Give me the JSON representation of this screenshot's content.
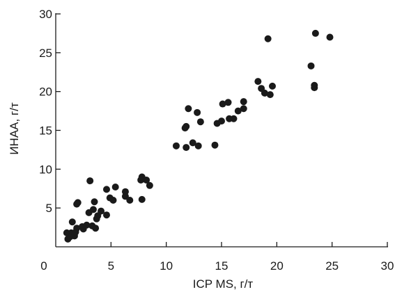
{
  "chart_data": {
    "type": "scatter",
    "xlabel": "ICP MS, г/т",
    "ylabel": "ИНАА, г/т",
    "xlim": [
      0,
      30
    ],
    "ylim": [
      0,
      30
    ],
    "x_ticks": [
      "0",
      "5",
      "10",
      "15",
      "20",
      "25",
      "30"
    ],
    "y_ticks": [
      "5",
      "10",
      "15",
      "20",
      "25",
      "30"
    ],
    "grid": false,
    "legend": "none",
    "point_color": "#1a1a1a",
    "points": [
      {
        "x": 1.0,
        "y": 1.8
      },
      {
        "x": 1.1,
        "y": 1.0
      },
      {
        "x": 1.3,
        "y": 1.3
      },
      {
        "x": 1.4,
        "y": 1.8
      },
      {
        "x": 1.5,
        "y": 1.5
      },
      {
        "x": 1.5,
        "y": 3.2
      },
      {
        "x": 1.7,
        "y": 1.4
      },
      {
        "x": 1.8,
        "y": 1.9
      },
      {
        "x": 1.9,
        "y": 2.4
      },
      {
        "x": 1.9,
        "y": 5.5
      },
      {
        "x": 2.0,
        "y": 5.7
      },
      {
        "x": 2.4,
        "y": 2.6
      },
      {
        "x": 2.5,
        "y": 2.3
      },
      {
        "x": 2.8,
        "y": 2.8
      },
      {
        "x": 3.0,
        "y": 4.4
      },
      {
        "x": 3.1,
        "y": 8.5
      },
      {
        "x": 3.3,
        "y": 2.7
      },
      {
        "x": 3.4,
        "y": 4.8
      },
      {
        "x": 3.5,
        "y": 5.8
      },
      {
        "x": 3.6,
        "y": 2.4
      },
      {
        "x": 3.7,
        "y": 3.6
      },
      {
        "x": 3.8,
        "y": 4.0
      },
      {
        "x": 4.1,
        "y": 4.6
      },
      {
        "x": 4.6,
        "y": 4.1
      },
      {
        "x": 4.6,
        "y": 7.4
      },
      {
        "x": 4.9,
        "y": 6.3
      },
      {
        "x": 5.2,
        "y": 6.0
      },
      {
        "x": 5.4,
        "y": 7.7
      },
      {
        "x": 6.3,
        "y": 7.1
      },
      {
        "x": 6.3,
        "y": 6.5
      },
      {
        "x": 6.7,
        "y": 6.0
      },
      {
        "x": 7.7,
        "y": 8.6
      },
      {
        "x": 7.8,
        "y": 9.0
      },
      {
        "x": 7.8,
        "y": 6.1
      },
      {
        "x": 8.2,
        "y": 8.6
      },
      {
        "x": 8.5,
        "y": 7.9
      },
      {
        "x": 10.9,
        "y": 13.0
      },
      {
        "x": 11.7,
        "y": 15.3
      },
      {
        "x": 11.8,
        "y": 15.5
      },
      {
        "x": 11.8,
        "y": 12.8
      },
      {
        "x": 12.0,
        "y": 17.8
      },
      {
        "x": 12.4,
        "y": 13.4
      },
      {
        "x": 12.8,
        "y": 17.3
      },
      {
        "x": 12.9,
        "y": 13.0
      },
      {
        "x": 13.1,
        "y": 16.1
      },
      {
        "x": 14.4,
        "y": 13.1
      },
      {
        "x": 14.6,
        "y": 15.9
      },
      {
        "x": 15.0,
        "y": 16.2
      },
      {
        "x": 15.1,
        "y": 18.4
      },
      {
        "x": 15.6,
        "y": 18.6
      },
      {
        "x": 15.7,
        "y": 16.5
      },
      {
        "x": 16.1,
        "y": 16.5
      },
      {
        "x": 16.5,
        "y": 17.5
      },
      {
        "x": 17.0,
        "y": 18.7
      },
      {
        "x": 17.0,
        "y": 17.8
      },
      {
        "x": 18.3,
        "y": 21.3
      },
      {
        "x": 18.6,
        "y": 20.4
      },
      {
        "x": 18.9,
        "y": 19.8
      },
      {
        "x": 19.2,
        "y": 26.8
      },
      {
        "x": 19.4,
        "y": 19.6
      },
      {
        "x": 19.6,
        "y": 20.7
      },
      {
        "x": 23.1,
        "y": 23.3
      },
      {
        "x": 23.4,
        "y": 20.8
      },
      {
        "x": 23.4,
        "y": 20.5
      },
      {
        "x": 23.5,
        "y": 27.5
      },
      {
        "x": 24.8,
        "y": 27.0
      }
    ]
  }
}
